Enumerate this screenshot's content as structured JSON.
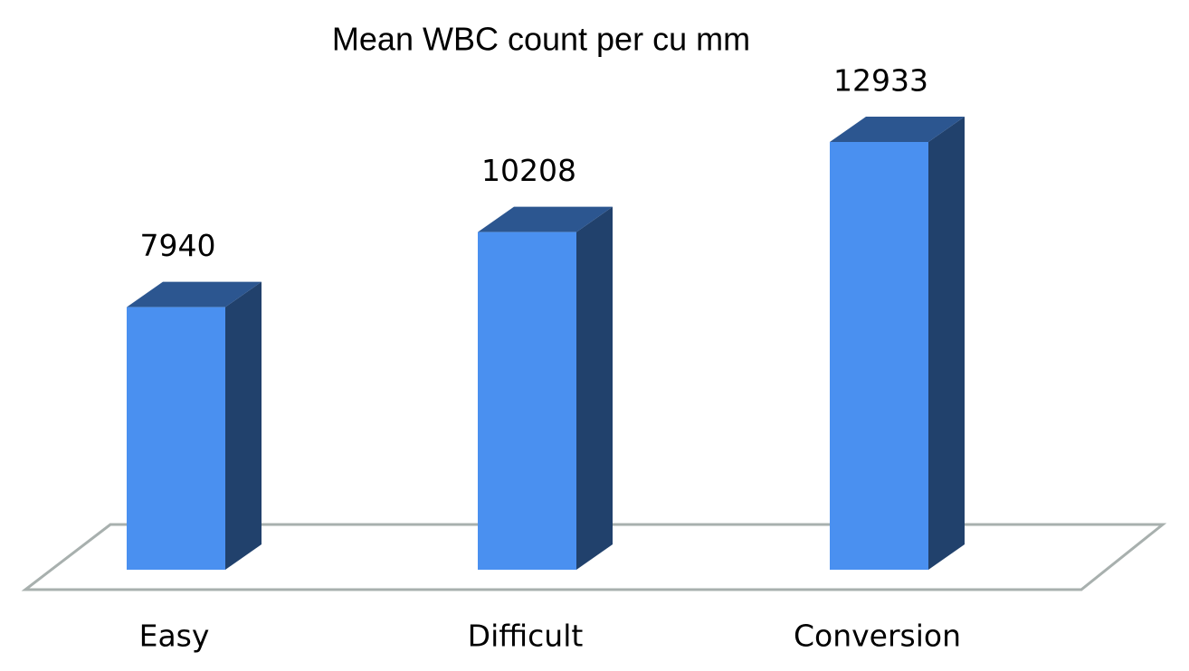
{
  "chart_data": {
    "type": "bar3d",
    "title": "Mean WBC count per cu mm",
    "categories": [
      "Easy",
      "Difficult",
      "Conversion"
    ],
    "values": [
      7940,
      10208,
      12933
    ],
    "color": "#4a90f0"
  }
}
